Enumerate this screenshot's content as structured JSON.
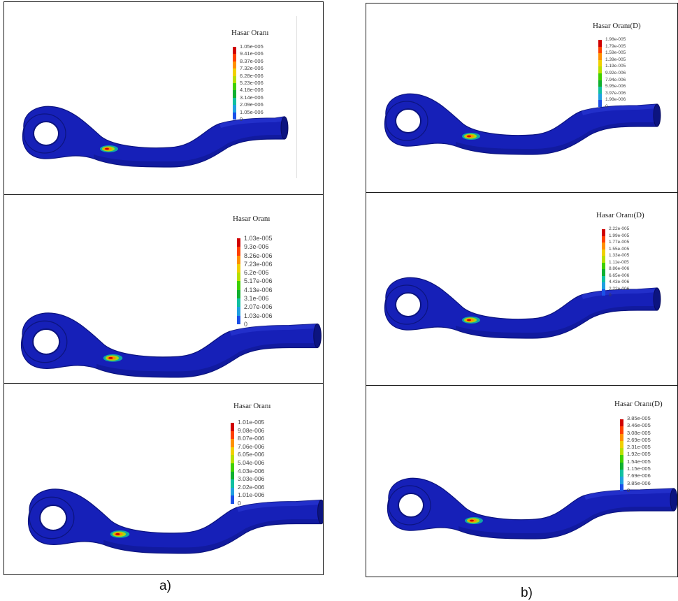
{
  "colors": {
    "part": "#1620b8",
    "part_dark": "#0c1480",
    "part_light": "#2c3ad6",
    "legend": [
      "#d00000",
      "#ff4000",
      "#ff9000",
      "#f0d000",
      "#b8e000",
      "#40d000",
      "#10b030",
      "#10c0a0",
      "#20a0e0",
      "#1a50e8",
      "#1010b0"
    ]
  },
  "captions": {
    "left": "a)",
    "right": "b)"
  },
  "panels": [
    {
      "id": "a1",
      "title": "Hasar Oranı",
      "labels": [
        "1.05e-005",
        "9.41e-006",
        "8.37e-006",
        "7.32e-006",
        "6.28e-006",
        "5.23e-006",
        "4.18e-006",
        "3.14e-006",
        "2.09e-006",
        "1.05e-006",
        "0"
      ]
    },
    {
      "id": "a2",
      "title": "Hasar Oranı",
      "labels": [
        "1.03e-005",
        "9.3e-006",
        "8.26e-006",
        "7.23e-006",
        "6.2e-006",
        "5.17e-006",
        "4.13e-006",
        "3.1e-006",
        "2.07e-006",
        "1.03e-006",
        "0"
      ]
    },
    {
      "id": "a3",
      "title": "Hasar Oranı",
      "labels": [
        "1.01e-005",
        "9.08e-006",
        "8.07e-006",
        "7.06e-006",
        "6.05e-006",
        "5.04e-006",
        "4.03e-006",
        "3.03e-006",
        "2.02e-006",
        "1.01e-006",
        "0"
      ]
    },
    {
      "id": "b1",
      "title": "Hasar Oranı(D)",
      "labels": [
        "1.98e-005",
        "1.79e-005",
        "1.59e-005",
        "1.39e-005",
        "1.19e-005",
        "9.92e-006",
        "7.94e-006",
        "5.95e-006",
        "3.97e-006",
        "1.98e-006",
        "0"
      ]
    },
    {
      "id": "b2",
      "title": "Hasar Oranı(D)",
      "labels": [
        "2.22e-005",
        "1.99e-005",
        "1.77e-005",
        "1.55e-005",
        "1.33e-005",
        "1.11e-005",
        "8.86e-006",
        "6.65e-006",
        "4.43e-006",
        "2.22e-006",
        "0"
      ]
    },
    {
      "id": "b3",
      "title": "Hasar Oranı(D)",
      "labels": [
        "3.85e-005",
        "3.46e-005",
        "3.08e-005",
        "2.69e-005",
        "2.31e-005",
        "1.92e-005",
        "1.54e-005",
        "1.15e-005",
        "7.69e-006",
        "3.85e-006",
        "0"
      ]
    }
  ]
}
